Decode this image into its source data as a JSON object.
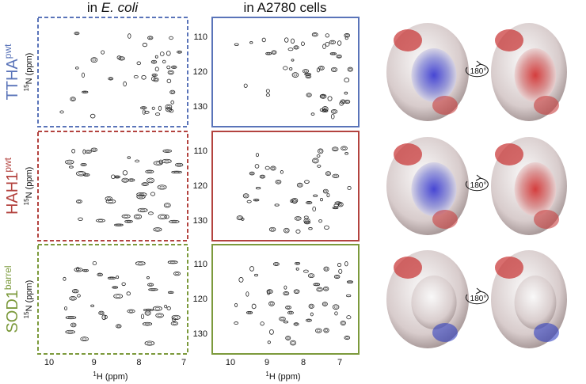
{
  "columns": [
    {
      "prefix": "in ",
      "italic": "E. coli"
    },
    {
      "prefix": "in A2780 cells"
    }
  ],
  "rows": [
    {
      "name": "TTHA",
      "superscript": "pwt",
      "color": "#5a74b9"
    },
    {
      "name": "HAH1",
      "superscript": "pwt",
      "color": "#b3433f"
    },
    {
      "name": "SOD1",
      "superscript": "barrel",
      "color": "#7c9a3c"
    }
  ],
  "y_axis": {
    "superscript": "15",
    "label": "N (ppm)",
    "ticks": [
      110,
      120,
      130
    ]
  },
  "x_axis": {
    "superscript": "1",
    "label": "H (ppm)",
    "ticks": [
      10,
      9,
      8,
      7
    ]
  },
  "rotation_label": "180°"
}
